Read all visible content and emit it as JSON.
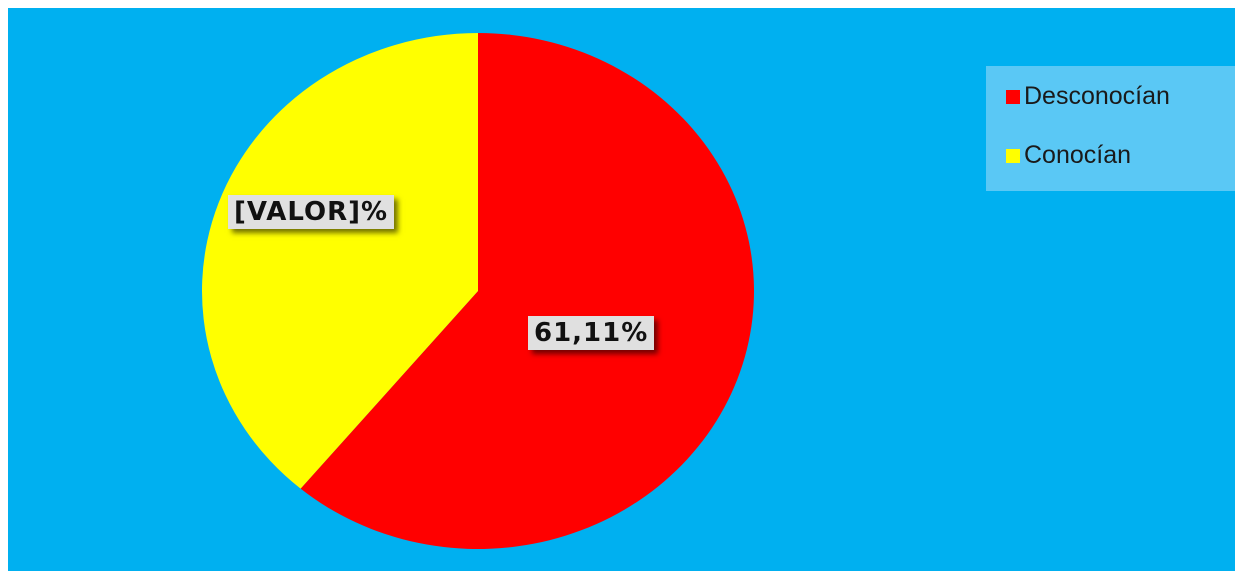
{
  "chart_data": {
    "type": "pie",
    "labels": [
      "Desconocían",
      "Conocían"
    ],
    "values": [
      61.11,
      38.89
    ],
    "data_labels": [
      "61,11%",
      "[VALOR]%"
    ],
    "colors": [
      "#ff0000",
      "#ffff00"
    ],
    "legend_position": "top-right",
    "background": "#00b0f0"
  }
}
